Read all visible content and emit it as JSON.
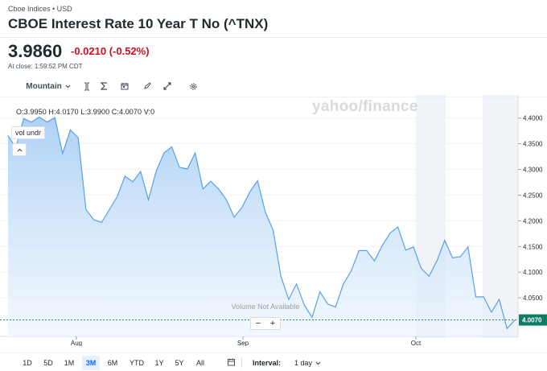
{
  "header": {
    "breadcrumb": "Cboe Indices • USD",
    "title": "CBOE Interest Rate 10 Year T No (^TNX)",
    "price": "3.9860",
    "change": "-0.0210 (-0.52%)",
    "at_close": "At close: 1:59:52 PM CDT"
  },
  "toolbar": {
    "theme_label": "Mountain",
    "icons": [
      "indicators-icon",
      "sigma-icon",
      "calendar-events-icon",
      "draw-pencil-icon",
      "fullscreen-icon",
      "settings-icon"
    ]
  },
  "ohlc": "O:3.9950  H:4.0170  L:3.9900  C:4.0070  V:0",
  "study_chip": "vol undr",
  "watermark": "yahoo/finance",
  "volume_note": "Volume Not Available",
  "zoom": {
    "minus": "−",
    "plus": "+"
  },
  "ranges": [
    "1D",
    "5D",
    "1M",
    "3M",
    "6M",
    "YTD",
    "1Y",
    "5Y",
    "All"
  ],
  "active_range": "3M",
  "interval": {
    "label": "Interval:",
    "value": "1 day"
  },
  "colors": {
    "line": "#5aa0e8",
    "fill_top": "#a9cff5",
    "last_price": "#0a7f63",
    "negative": "#d50d24",
    "active": "#0f69ff"
  },
  "chart_data": {
    "type": "area",
    "y_ticks": [
      "4.4000",
      "4.3500",
      "4.3000",
      "4.2500",
      "4.2000",
      "4.1500",
      "4.1000",
      "4.0500"
    ],
    "x_ticks": [
      "Aug",
      "Sep",
      "Oct"
    ],
    "ylim": [
      3.975,
      4.445
    ],
    "last_price_label": "4.0070",
    "values": [
      4.366,
      4.342,
      4.399,
      4.392,
      4.402,
      4.392,
      4.401,
      4.331,
      4.377,
      4.362,
      4.222,
      4.202,
      4.197,
      4.222,
      4.247,
      4.287,
      4.276,
      4.296,
      4.241,
      4.297,
      4.332,
      4.344,
      4.304,
      4.301,
      4.332,
      4.262,
      4.277,
      4.262,
      4.241,
      4.207,
      4.226,
      4.256,
      4.278,
      4.217,
      4.182,
      4.092,
      4.047,
      4.077,
      4.036,
      4.012,
      4.062,
      4.038,
      4.032,
      4.077,
      4.102,
      4.142,
      4.142,
      4.122,
      4.152,
      4.176,
      4.188,
      4.143,
      4.149,
      4.107,
      4.092,
      4.122,
      4.162,
      4.128,
      4.13,
      4.149,
      4.052,
      4.052,
      4.022,
      4.047,
      3.99,
      4.007
    ]
  }
}
